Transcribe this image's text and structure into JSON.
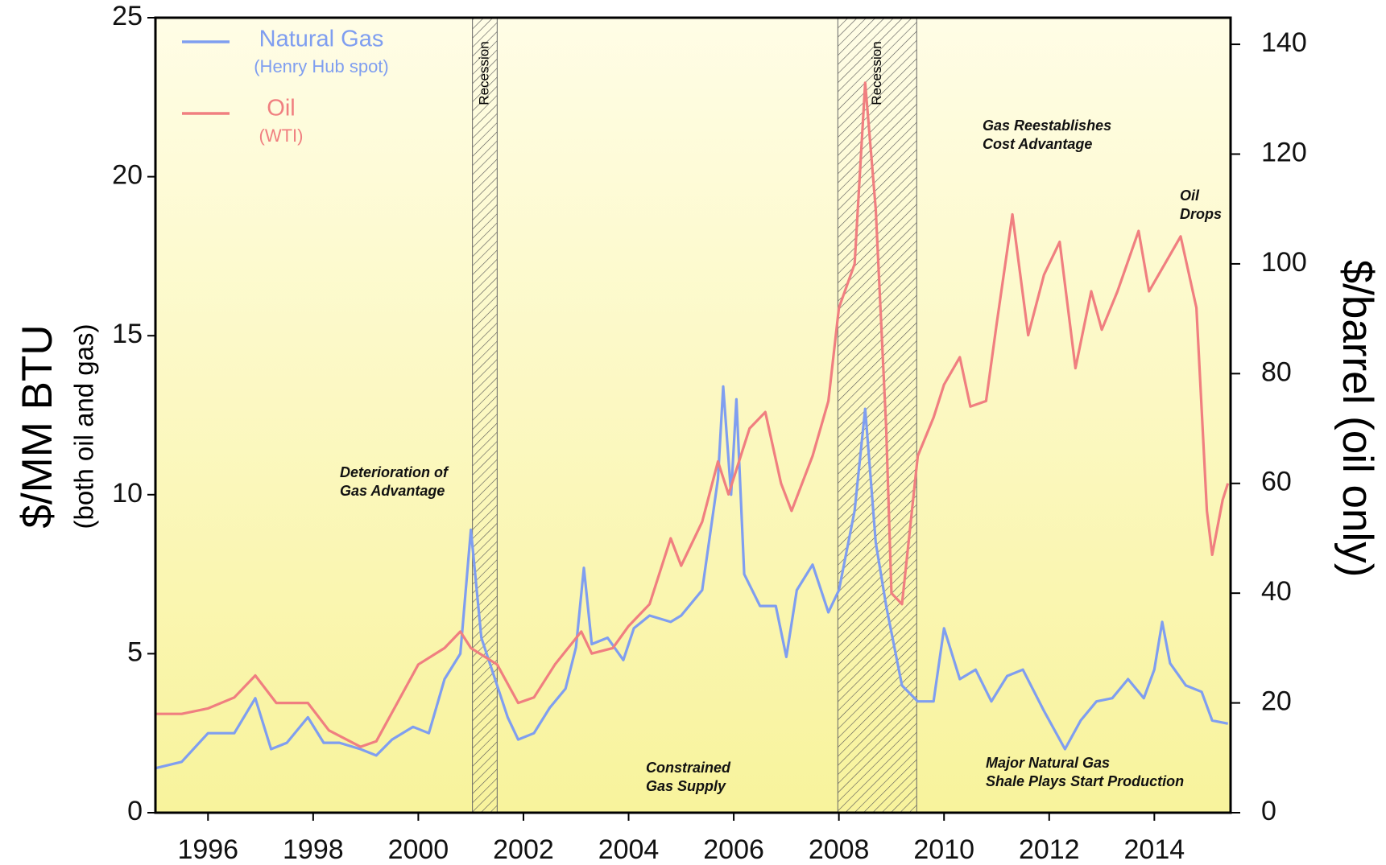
{
  "chart_data": {
    "type": "line",
    "ylabel": "$/MM BTU",
    "ylabel_sub": "(both oil and gas)",
    "y2label": "$/barrel (oil only)",
    "xlim": [
      1995,
      2015.45
    ],
    "xticks": [
      1996,
      1998,
      2000,
      2002,
      2004,
      2006,
      2008,
      2010,
      2012,
      2014
    ],
    "ylim": [
      0,
      25
    ],
    "yticks": [
      0,
      5,
      10,
      15,
      20,
      25
    ],
    "y2lim": [
      0,
      144.85
    ],
    "y2ticks": [
      0,
      20,
      40,
      60,
      80,
      100,
      120,
      140
    ],
    "recessions": [
      {
        "start": 2001.03,
        "end": 2001.5,
        "label": "Recession"
      },
      {
        "start": 2007.98,
        "end": 2009.48,
        "label": "Recession"
      }
    ],
    "annotations": [
      {
        "lines": [
          "Deterioration of",
          "Gas Advantage"
        ]
      },
      {
        "lines": [
          "Constrained",
          "Gas Supply"
        ]
      },
      {
        "lines": [
          "Gas Reestablishes",
          "Cost Advantage"
        ]
      },
      {
        "lines": [
          "Oil",
          "Drops"
        ]
      },
      {
        "lines": [
          "Major Natural Gas",
          "Shale Plays Start Production"
        ]
      }
    ],
    "series": [
      {
        "name": "Natural Gas",
        "legend_sublabel": "(Henry Hub spot)",
        "color": "#7f9ef0",
        "axis": "y",
        "x": [
          1995.0,
          1995.5,
          1996.0,
          1996.5,
          1996.9,
          1997.2,
          1997.5,
          1997.9,
          1998.2,
          1998.5,
          1998.9,
          1999.2,
          1999.5,
          1999.9,
          2000.2,
          2000.5,
          2000.8,
          2001.0,
          2001.2,
          2001.5,
          2001.7,
          2001.9,
          2002.2,
          2002.5,
          2002.8,
          2003.0,
          2003.15,
          2003.3,
          2003.6,
          2003.9,
          2004.1,
          2004.4,
          2004.8,
          2005.0,
          2005.4,
          2005.7,
          2005.8,
          2005.95,
          2006.05,
          2006.2,
          2006.5,
          2006.8,
          2007.0,
          2007.2,
          2007.5,
          2007.8,
          2008.0,
          2008.3,
          2008.5,
          2008.7,
          2008.9,
          2009.2,
          2009.5,
          2009.8,
          2010.0,
          2010.3,
          2010.6,
          2010.9,
          2011.2,
          2011.5,
          2011.9,
          2012.3,
          2012.6,
          2012.9,
          2013.2,
          2013.5,
          2013.8,
          2014.0,
          2014.15,
          2014.3,
          2014.6,
          2014.9,
          2015.1,
          2015.4
        ],
        "values": [
          1.4,
          1.6,
          2.5,
          2.5,
          3.6,
          2.0,
          2.2,
          3.0,
          2.2,
          2.2,
          2.0,
          1.8,
          2.3,
          2.7,
          2.5,
          4.2,
          5.0,
          8.9,
          5.5,
          4.0,
          3.0,
          2.3,
          2.5,
          3.3,
          3.9,
          5.2,
          7.7,
          5.3,
          5.5,
          4.8,
          5.8,
          6.2,
          6.0,
          6.2,
          7.0,
          10.5,
          13.4,
          10.0,
          13.0,
          7.5,
          6.5,
          6.5,
          4.9,
          7.0,
          7.8,
          6.3,
          7.0,
          9.5,
          12.7,
          8.5,
          6.5,
          4.0,
          3.5,
          3.5,
          5.8,
          4.2,
          4.5,
          3.5,
          4.3,
          4.5,
          3.2,
          2.0,
          2.9,
          3.5,
          3.6,
          4.2,
          3.6,
          4.5,
          6.0,
          4.7,
          4.0,
          3.8,
          2.9,
          2.8
        ]
      },
      {
        "name": "Oil",
        "legend_sublabel": "(WTI)",
        "color": "#f07f80",
        "axis": "y2",
        "x": [
          1995.0,
          1995.5,
          1996.0,
          1996.5,
          1996.9,
          1997.3,
          1997.9,
          1998.3,
          1998.9,
          1999.2,
          1999.6,
          2000.0,
          2000.5,
          2000.8,
          2001.0,
          2001.5,
          2001.9,
          2002.2,
          2002.6,
          2003.1,
          2003.3,
          2003.7,
          2004.0,
          2004.4,
          2004.8,
          2005.0,
          2005.4,
          2005.7,
          2005.9,
          2006.3,
          2006.6,
          2006.9,
          2007.1,
          2007.5,
          2007.8,
          2008.0,
          2008.3,
          2008.5,
          2008.7,
          2008.9,
          2009.0,
          2009.2,
          2009.5,
          2009.8,
          2010.0,
          2010.3,
          2010.5,
          2010.8,
          2011.0,
          2011.3,
          2011.6,
          2011.9,
          2012.2,
          2012.5,
          2012.8,
          2013.0,
          2013.3,
          2013.7,
          2013.9,
          2014.2,
          2014.5,
          2014.8,
          2015.0,
          2015.1,
          2015.3,
          2015.4
        ],
        "values": [
          18,
          18,
          19,
          21,
          25,
          20,
          20,
          15,
          12,
          13,
          20,
          27,
          30,
          33,
          30,
          27,
          20,
          21,
          27,
          33,
          29,
          30,
          34,
          38,
          50,
          45,
          53,
          64,
          58,
          70,
          73,
          60,
          55,
          65,
          75,
          92,
          100,
          133,
          110,
          70,
          40,
          38,
          65,
          72,
          78,
          83,
          74,
          75,
          89,
          109,
          87,
          98,
          104,
          81,
          95,
          88,
          95,
          106,
          95,
          100,
          105,
          92,
          55,
          47,
          57,
          60
        ]
      }
    ]
  }
}
